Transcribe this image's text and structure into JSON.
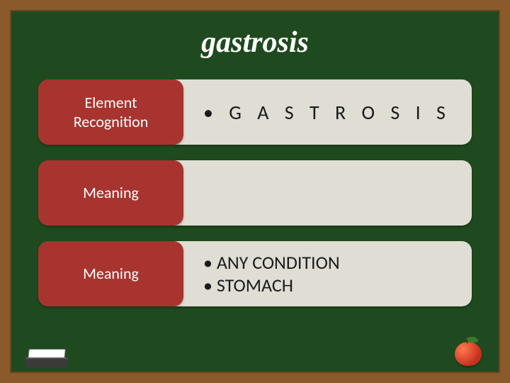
{
  "title": "gastrosis",
  "rows": [
    {
      "label_lines": [
        "Element",
        "Recognition"
      ],
      "content_lines": [
        "• G A S T R O S I S"
      ],
      "spaced": true
    },
    {
      "label_lines": [
        "Meaning"
      ],
      "content_lines": [],
      "spaced": false
    },
    {
      "label_lines": [
        "Meaning"
      ],
      "content_lines": [
        "• ANY CONDITION",
        "• STOMACH"
      ],
      "spaced": false
    }
  ],
  "colors": {
    "frame": "#8b5a2b",
    "board": "#1f4a1f",
    "label_bg": "#a8342f",
    "content_bg": "#e0ddd4",
    "title_color": "#ffffff",
    "label_text": "#ffffff",
    "content_text": "#1a1a1a"
  },
  "icons": {
    "bottom_left": "eraser-icon",
    "bottom_right": "apple-icon"
  }
}
